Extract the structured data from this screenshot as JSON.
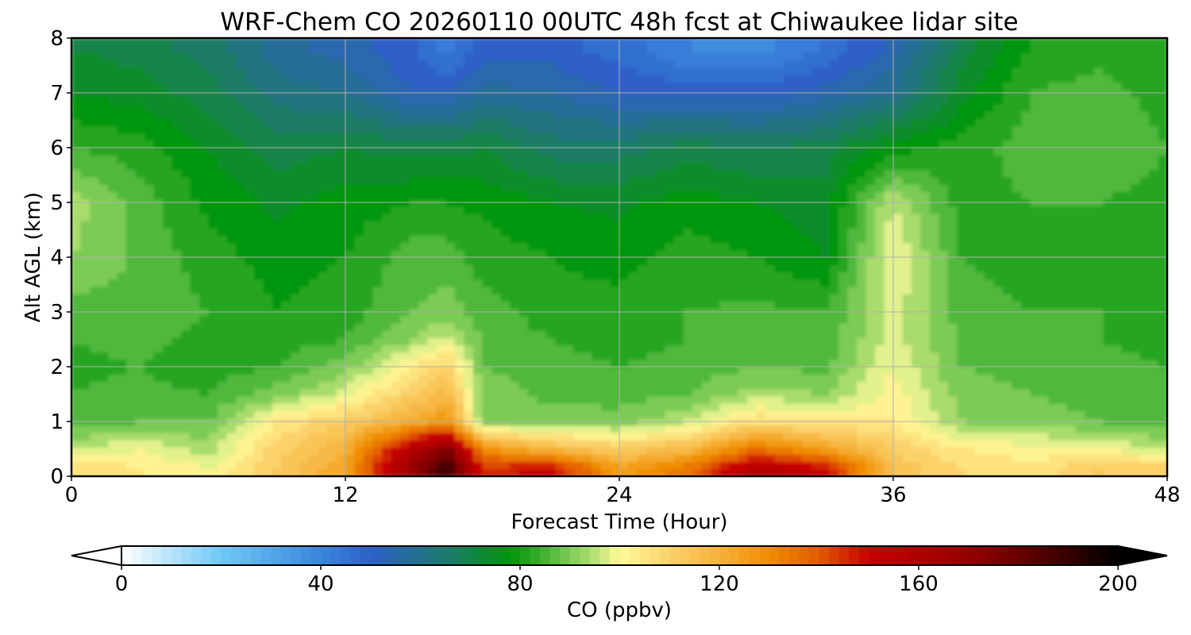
{
  "chart_data": {
    "type": "heatmap",
    "title": "WRF-Chem CO  20260110 00UTC 48h fcst at Chiwaukee lidar site",
    "xlabel": "Forecast Time (Hour)",
    "ylabel": "Alt AGL (km)",
    "xlim": [
      0,
      48
    ],
    "ylim": [
      0,
      8
    ],
    "x_ticks": [
      0,
      12,
      24,
      36,
      48
    ],
    "y_ticks": [
      0,
      1,
      2,
      3,
      4,
      5,
      6,
      7,
      8
    ],
    "grid": true,
    "x": [
      0,
      3,
      6,
      9,
      12,
      15,
      16.5,
      18,
      21,
      24,
      27,
      30,
      33,
      36,
      39,
      42,
      45,
      48
    ],
    "y": [
      0.15,
      0.5,
      1,
      1.5,
      2,
      2.5,
      3,
      4,
      5,
      6,
      7,
      7.8
    ],
    "z": [
      [
        108,
        104,
        100,
        112,
        124,
        170,
        190,
        145,
        150,
        125,
        135,
        160,
        150,
        115,
        108,
        105,
        112,
        110
      ],
      [
        96,
        100,
        94,
        110,
        120,
        160,
        175,
        130,
        118,
        112,
        118,
        135,
        125,
        112,
        104,
        102,
        100,
        96
      ],
      [
        86,
        88,
        88,
        104,
        112,
        122,
        128,
        92,
        90,
        90,
        96,
        108,
        104,
        104,
        92,
        90,
        88,
        86
      ],
      [
        84,
        85,
        84,
        90,
        98,
        112,
        118,
        90,
        87,
        86,
        88,
        94,
        92,
        102,
        90,
        88,
        86,
        84
      ],
      [
        83,
        84,
        82,
        84,
        90,
        104,
        110,
        88,
        86,
        84,
        86,
        88,
        87,
        100,
        88,
        86,
        85,
        84
      ],
      [
        84,
        85,
        83,
        82,
        84,
        92,
        98,
        87,
        84,
        82,
        84,
        86,
        85,
        98,
        87,
        85,
        84,
        83
      ],
      [
        86,
        87,
        84,
        80,
        82,
        88,
        90,
        86,
        82,
        82,
        84,
        85,
        84,
        98,
        86,
        84,
        84,
        82
      ],
      [
        92,
        87,
        82,
        78,
        80,
        86,
        86,
        82,
        80,
        78,
        82,
        80,
        76,
        100,
        84,
        82,
        82,
        80
      ],
      [
        94,
        86,
        79,
        75,
        78,
        80,
        80,
        79,
        76,
        75,
        78,
        76,
        74,
        96,
        82,
        84,
        84,
        82
      ],
      [
        84,
        82,
        76,
        70,
        72,
        70,
        70,
        72,
        66,
        66,
        70,
        68,
        70,
        78,
        82,
        86,
        88,
        84
      ],
      [
        76,
        74,
        70,
        62,
        60,
        52,
        52,
        58,
        56,
        52,
        50,
        50,
        54,
        60,
        74,
        84,
        86,
        82
      ],
      [
        72,
        70,
        66,
        58,
        54,
        48,
        42,
        50,
        50,
        46,
        40,
        38,
        44,
        54,
        70,
        80,
        82,
        80
      ]
    ],
    "colorbar": {
      "label": "CO  (ppbv)",
      "ticks": [
        0,
        40,
        80,
        120,
        160,
        200
      ],
      "range": [
        0,
        200
      ],
      "extend": "both",
      "stops": [
        {
          "v": 0,
          "c": "#ffffff"
        },
        {
          "v": 20,
          "c": "#6ec8f5"
        },
        {
          "v": 40,
          "c": "#3a86dc"
        },
        {
          "v": 50,
          "c": "#2d60c8"
        },
        {
          "v": 65,
          "c": "#1e7a6e"
        },
        {
          "v": 78,
          "c": "#00960a"
        },
        {
          "v": 84,
          "c": "#3aac2e"
        },
        {
          "v": 88,
          "c": "#66c34a"
        },
        {
          "v": 94,
          "c": "#a8dc6c"
        },
        {
          "v": 100,
          "c": "#fffb9a"
        },
        {
          "v": 110,
          "c": "#fbd16a"
        },
        {
          "v": 120,
          "c": "#f6b23a"
        },
        {
          "v": 130,
          "c": "#f08c00"
        },
        {
          "v": 140,
          "c": "#e25a00"
        },
        {
          "v": 150,
          "c": "#c80000"
        },
        {
          "v": 170,
          "c": "#960000"
        },
        {
          "v": 185,
          "c": "#500000"
        },
        {
          "v": 200,
          "c": "#000000"
        }
      ]
    }
  }
}
